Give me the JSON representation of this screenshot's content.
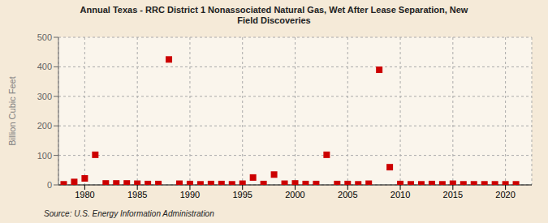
{
  "chart_data": {
    "type": "scatter",
    "title": "Annual Texas - RRC District 1 Nonassociated Natural Gas, Wet After Lease Separation, New\nField Discoveries",
    "y_label": "Billion Cubic Feet",
    "annotations": [
      "Source: U.S. Energy Information Administration"
    ],
    "x": [
      1978,
      1979,
      1980,
      1981,
      1982,
      1983,
      1984,
      1985,
      1986,
      1987,
      1988,
      1989,
      1990,
      1991,
      1992,
      1993,
      1994,
      1995,
      1996,
      1997,
      1998,
      1999,
      2000,
      2001,
      2002,
      2003,
      2004,
      2005,
      2006,
      2007,
      2008,
      2009,
      2010,
      2011,
      2012,
      2013,
      2014,
      2015,
      2016,
      2017,
      2018,
      2019,
      2020,
      2021
    ],
    "values": [
      2,
      10,
      22,
      102,
      5,
      5,
      5,
      4,
      3,
      3,
      425,
      4,
      3,
      2,
      3,
      3,
      2,
      4,
      25,
      3,
      35,
      4,
      5,
      3,
      3,
      102,
      3,
      3,
      2,
      4,
      390,
      60,
      3,
      2,
      2,
      3,
      2,
      4,
      2,
      2,
      2,
      2,
      2,
      2
    ],
    "color": "#cc0000",
    "marker": "square",
    "xlim": [
      1977.5,
      2022.5
    ],
    "xticks": [
      1980,
      1985,
      1990,
      1995,
      2000,
      2005,
      2010,
      2015,
      2020
    ],
    "ylim": [
      0,
      500
    ],
    "yticks": [
      0,
      100,
      200,
      300,
      400,
      500
    ],
    "grid": true
  }
}
